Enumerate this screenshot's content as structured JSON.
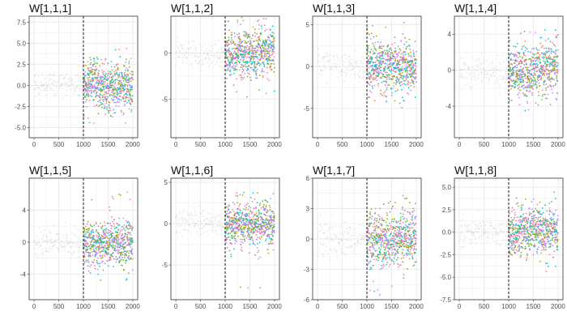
{
  "chart_data": [
    {
      "type": "scatter",
      "title": "W[1,1,1]",
      "xlim": [
        -100,
        2100
      ],
      "ylim": [
        -6.2,
        8.2
      ],
      "xticks": [
        0,
        500,
        1000,
        1500,
        2000
      ],
      "xtick_labels": [
        "0",
        "500",
        "1000",
        "1500",
        "2000"
      ],
      "yticks": [
        -5,
        -2.5,
        0,
        2.5,
        5,
        7.5
      ],
      "ytick_labels": [
        "-5.0",
        "-2.5",
        "0.0",
        "2.5",
        "5.0",
        "7.5"
      ],
      "vline_x": 1000,
      "pre_spread": 1.0,
      "post_spread": 1.3,
      "extreme_high": 5.2,
      "extreme_low": -4.5,
      "grid": true
    },
    {
      "type": "scatter",
      "title": "W[1,1,2]",
      "xlim": [
        -100,
        2100
      ],
      "ylim": [
        -9.2,
        4.0
      ],
      "xticks": [
        0,
        500,
        1000,
        1500,
        2000
      ],
      "xtick_labels": [
        "0",
        "500",
        "1000",
        "1500",
        "2000"
      ],
      "yticks": [
        -5,
        0
      ],
      "ytick_labels": [
        "-5",
        "0"
      ],
      "vline_x": 1000,
      "pre_spread": 0.9,
      "post_spread": 1.2,
      "extreme_high": 3.8,
      "extreme_low": -5.0,
      "grid": true
    },
    {
      "type": "scatter",
      "title": "W[1,1,3]",
      "xlim": [
        -100,
        2100
      ],
      "ylim": [
        -8.5,
        6.0
      ],
      "xticks": [
        0,
        500,
        1000,
        1500,
        2000
      ],
      "xtick_labels": [
        "0",
        "500",
        "1000",
        "1500",
        "2000"
      ],
      "yticks": [
        -5,
        0,
        5
      ],
      "ytick_labels": [
        "-5",
        "0",
        "5"
      ],
      "vline_x": 1000,
      "pre_spread": 1.0,
      "post_spread": 1.4,
      "extreme_high": 5.0,
      "extreme_low": -4.5,
      "grid": true
    },
    {
      "type": "scatter",
      "title": "W[1,1,4]",
      "xlim": [
        -100,
        2100
      ],
      "ylim": [
        -7.5,
        6.0
      ],
      "xticks": [
        0,
        500,
        1000,
        1500,
        2000
      ],
      "xtick_labels": [
        "0",
        "500",
        "1000",
        "1500",
        "2000"
      ],
      "yticks": [
        -4,
        0,
        4
      ],
      "ytick_labels": [
        "-4",
        "0",
        "4"
      ],
      "vline_x": 1000,
      "pre_spread": 1.0,
      "post_spread": 1.3,
      "extreme_high": 4.8,
      "extreme_low": -4.5,
      "grid": true
    },
    {
      "type": "scatter",
      "title": "W[1,1,5]",
      "xlim": [
        -100,
        2100
      ],
      "ylim": [
        -7.2,
        8.0
      ],
      "xticks": [
        0,
        500,
        1000,
        1500,
        2000
      ],
      "xtick_labels": [
        "0",
        "500",
        "1000",
        "1500",
        "2000"
      ],
      "yticks": [
        -4,
        0,
        4
      ],
      "ytick_labels": [
        "-4",
        "0",
        "4"
      ],
      "vline_x": 1000,
      "pre_spread": 1.0,
      "post_spread": 1.3,
      "extreme_high": 6.5,
      "extreme_low": -5.2,
      "grid": true
    },
    {
      "type": "scatter",
      "title": "W[1,1,6]",
      "xlim": [
        -100,
        2100
      ],
      "ylim": [
        -9.2,
        5.5
      ],
      "xticks": [
        0,
        500,
        1000,
        1500,
        2000
      ],
      "xtick_labels": [
        "0",
        "500",
        "1000",
        "1500",
        "2000"
      ],
      "yticks": [
        -5,
        0,
        5
      ],
      "ytick_labels": [
        "-5",
        "0",
        "5"
      ],
      "vline_x": 1000,
      "pre_spread": 1.0,
      "post_spread": 1.3,
      "extreme_high": 3.8,
      "extreme_low": -8.0,
      "grid": true
    },
    {
      "type": "scatter",
      "title": "W[1,1,7]",
      "xlim": [
        -100,
        2100
      ],
      "ylim": [
        -6.0,
        6.0
      ],
      "xticks": [
        0,
        500,
        1000,
        1500,
        2000
      ],
      "xtick_labels": [
        "0",
        "500",
        "1000",
        "1500",
        "2000"
      ],
      "yticks": [
        -6,
        -3,
        0,
        3,
        6
      ],
      "ytick_labels": [
        "-6",
        "-3",
        "0",
        "3",
        "6"
      ],
      "vline_x": 1000,
      "pre_spread": 1.0,
      "post_spread": 1.3,
      "extreme_high": 4.5,
      "extreme_low": -5.5,
      "grid": true
    },
    {
      "type": "scatter",
      "title": "W[1,1,8]",
      "xlim": [
        -100,
        2100
      ],
      "ylim": [
        -7.5,
        6.0
      ],
      "xticks": [
        0,
        500,
        1000,
        1500,
        2000
      ],
      "xtick_labels": [
        "0",
        "500",
        "1000",
        "1500",
        "2000"
      ],
      "yticks": [
        -7.5,
        -5,
        -2.5,
        0,
        2.5,
        5
      ],
      "ytick_labels": [
        "-7.5",
        "-5.0",
        "-2.5",
        "0.0",
        "2.5",
        "5.0"
      ],
      "vline_x": 1000,
      "pre_spread": 1.0,
      "post_spread": 1.2,
      "extreme_high": 4.0,
      "extreme_low": -4.5,
      "grid": true
    }
  ],
  "series_colors": [
    "#F8766D",
    "#7CAE00",
    "#00BFC4",
    "#C77CFF"
  ],
  "colors": {
    "grid": "#ebebeb",
    "frame": "#333333",
    "vline": "#000000",
    "tick_text": "#4d4d4d"
  }
}
